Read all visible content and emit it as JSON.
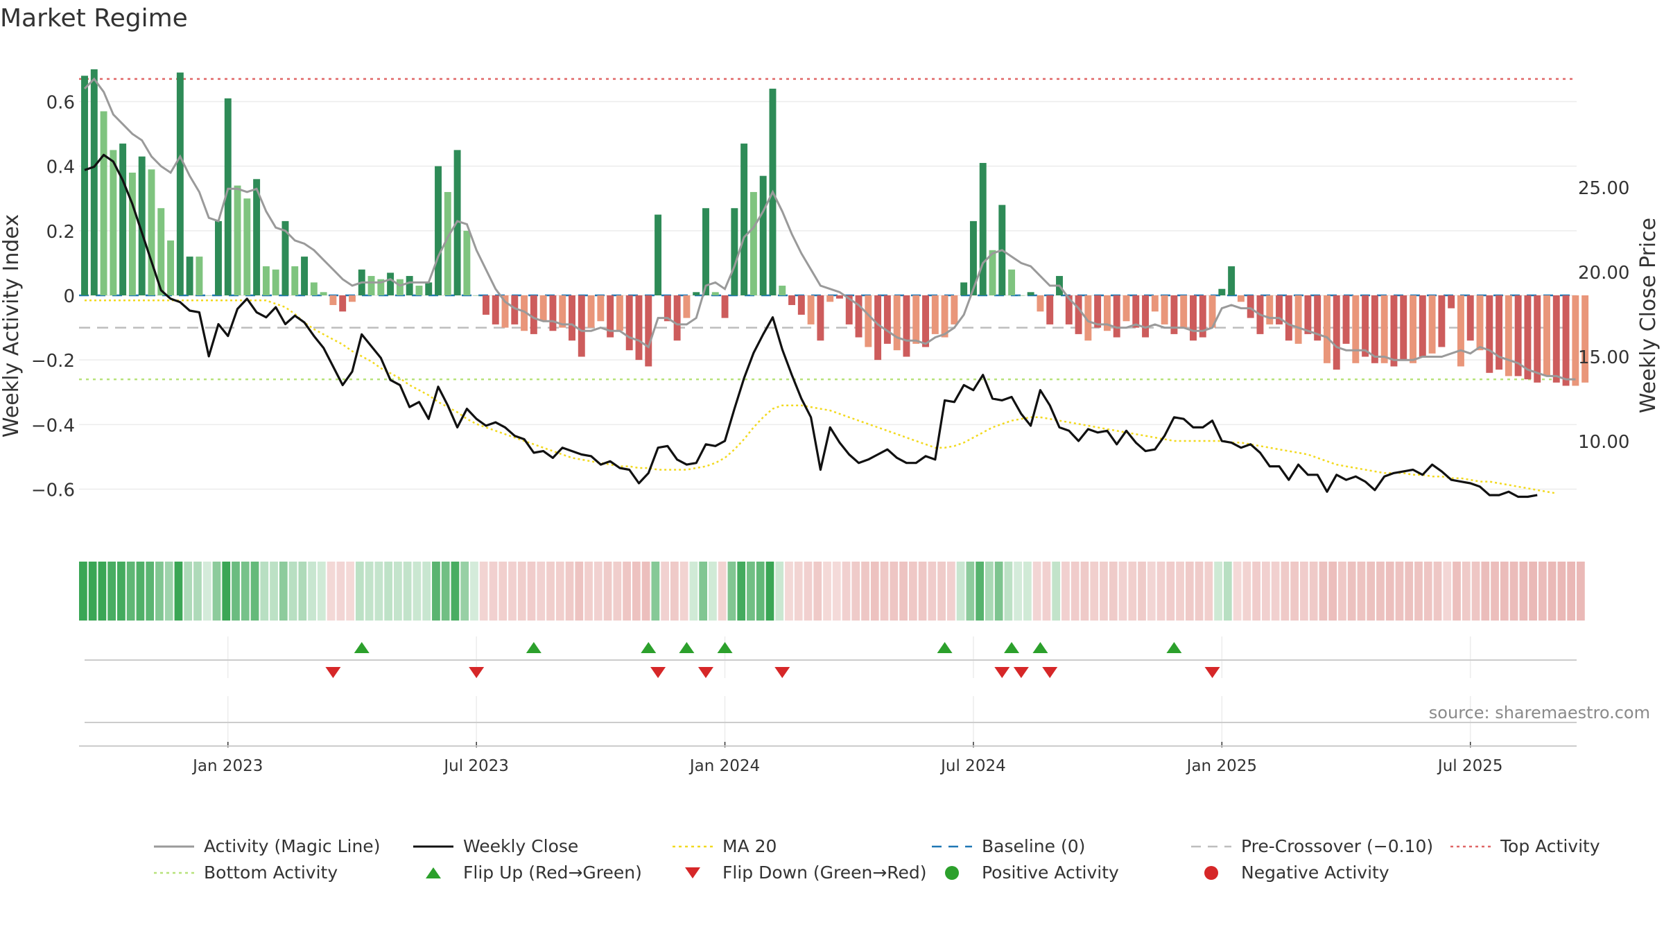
{
  "title": "Market Regime",
  "source": "source: sharemaestro.com",
  "colors": {
    "pos_strong": "#2e8b57",
    "pos_light": "#7fc47f",
    "neg_strong": "#cd5c5c",
    "neg_light": "#e9967a",
    "weekly_close": "#111111",
    "magic_line": "#9a9a9a",
    "ma20": "#f2d91f",
    "baseline": "#1f77b4",
    "pre_crossover": "#bdbdbd",
    "top_activity": "#e06666",
    "bottom_activity": "#b7e27a",
    "flip_up": "#2ca02c",
    "flip_down": "#d62728"
  },
  "chart_data": {
    "type": "bar+line",
    "title": "Market Regime",
    "ylabel_left": "Weekly Activity Index",
    "ylabel_right": "Weekly Close Price",
    "y_left_ticks": [
      {
        "v": 0.6,
        "label": "0.6"
      },
      {
        "v": 0.4,
        "label": "0.4"
      },
      {
        "v": 0.2,
        "label": "0.2"
      },
      {
        "v": 0,
        "label": "0"
      },
      {
        "v": -0.2,
        "label": "−0.2"
      },
      {
        "v": -0.4,
        "label": "−0.4"
      },
      {
        "v": -0.6,
        "label": "−0.6"
      }
    ],
    "y_right_ticks": [
      {
        "v": 25,
        "label": "25.00"
      },
      {
        "v": 20,
        "label": "20.00"
      },
      {
        "v": 15,
        "label": "15.00"
      },
      {
        "v": 10,
        "label": "10.00"
      }
    ],
    "ylim_left": [
      -0.76,
      0.76
    ],
    "ylim_right": [
      4.1,
      33.1
    ],
    "x_ticks": [
      {
        "week": 15,
        "label": "Jan 2023"
      },
      {
        "week": 41,
        "label": "Jul 2023"
      },
      {
        "week": 67,
        "label": "Jan 2024"
      },
      {
        "week": 93,
        "label": "Jul 2024"
      },
      {
        "week": 119,
        "label": "Jan 2025"
      },
      {
        "week": 145,
        "label": "Jul 2025"
      }
    ],
    "week_count": 157,
    "reference_lines": {
      "top_activity": 0.67,
      "bottom_activity": -0.26,
      "pre_crossover": -0.1,
      "baseline": 0,
      "ma20_start": 0.115
    },
    "activity": [
      0.68,
      0.7,
      0.57,
      0.45,
      0.47,
      0.38,
      0.43,
      0.39,
      0.27,
      0.17,
      0.69,
      0.12,
      0.12,
      0.0,
      0.23,
      0.61,
      0.34,
      0.3,
      0.36,
      0.09,
      0.08,
      0.23,
      0.09,
      0.12,
      0.04,
      0.01,
      -0.03,
      -0.05,
      -0.02,
      0.08,
      0.06,
      0.05,
      0.07,
      0.05,
      0.06,
      0.03,
      0.04,
      0.4,
      0.32,
      0.45,
      0.2,
      0.0,
      -0.06,
      -0.09,
      -0.1,
      -0.09,
      -0.11,
      -0.12,
      -0.08,
      -0.11,
      -0.1,
      -0.14,
      -0.19,
      -0.1,
      -0.08,
      -0.13,
      -0.11,
      -0.17,
      -0.2,
      -0.22,
      0.25,
      -0.08,
      -0.14,
      -0.07,
      0.01,
      0.27,
      0.01,
      -0.07,
      0.27,
      0.47,
      0.32,
      0.37,
      0.64,
      0.03,
      -0.03,
      -0.06,
      -0.09,
      -0.14,
      -0.02,
      -0.01,
      -0.09,
      -0.13,
      -0.16,
      -0.2,
      -0.15,
      -0.17,
      -0.19,
      -0.15,
      -0.16,
      -0.12,
      -0.13,
      -0.09,
      0.04,
      0.23,
      0.41,
      0.14,
      0.28,
      0.08,
      0.0,
      0.01,
      -0.05,
      -0.09,
      0.06,
      -0.09,
      -0.12,
      -0.14,
      -0.1,
      -0.11,
      -0.13,
      -0.08,
      -0.1,
      -0.13,
      -0.05,
      -0.09,
      -0.12,
      -0.1,
      -0.14,
      -0.13,
      -0.1,
      0.02,
      0.09,
      -0.02,
      -0.07,
      -0.12,
      -0.09,
      -0.09,
      -0.14,
      -0.15,
      -0.12,
      -0.14,
      -0.21,
      -0.23,
      -0.15,
      -0.21,
      -0.19,
      -0.21,
      -0.21,
      -0.22,
      -0.2,
      -0.21,
      -0.19,
      -0.18,
      -0.16,
      -0.04,
      -0.22,
      -0.14,
      -0.17,
      -0.24,
      -0.23,
      -0.25,
      -0.25,
      -0.26,
      -0.27,
      -0.25,
      -0.27,
      -0.28,
      -0.28,
      -0.27
    ],
    "activity_strong": [
      1,
      1,
      0,
      0,
      1,
      0,
      1,
      0,
      0,
      0,
      1,
      1,
      0,
      0,
      1,
      1,
      0,
      0,
      1,
      0,
      0,
      1,
      0,
      1,
      0,
      0,
      0,
      1,
      0,
      1,
      0,
      0,
      1,
      0,
      1,
      0,
      1,
      1,
      0,
      1,
      0,
      0,
      1,
      1,
      0,
      1,
      0,
      1,
      0,
      1,
      0,
      1,
      1,
      0,
      0,
      1,
      0,
      1,
      1,
      1,
      1,
      1,
      1,
      0,
      1,
      1,
      0,
      1,
      1,
      1,
      0,
      1,
      1,
      0,
      1,
      1,
      0,
      1,
      0,
      1,
      1,
      1,
      0,
      1,
      1,
      0,
      1,
      0,
      1,
      0,
      0,
      0,
      1,
      1,
      1,
      0,
      1,
      0,
      0,
      1,
      0,
      1,
      1,
      1,
      1,
      0,
      1,
      0,
      1,
      0,
      1,
      1,
      0,
      0,
      1,
      0,
      1,
      1,
      0,
      1,
      1,
      0,
      1,
      1,
      0,
      1,
      1,
      0,
      1,
      1,
      0,
      1,
      1,
      0,
      1,
      1,
      0,
      1,
      1,
      0,
      1,
      0,
      1,
      1,
      0,
      1,
      0,
      1,
      1,
      0,
      1,
      1,
      1,
      0,
      1,
      1,
      0
    ],
    "weekly_close": [
      26.0,
      26.2,
      26.9,
      26.5,
      25.4,
      24.0,
      22.3,
      20.6,
      18.9,
      18.4,
      18.2,
      17.7,
      17.6,
      15.0,
      16.9,
      16.2,
      17.8,
      18.4,
      17.6,
      17.3,
      17.9,
      16.9,
      17.4,
      17.0,
      16.2,
      15.5,
      14.4,
      13.3,
      14.1,
      16.3,
      15.6,
      14.9,
      13.6,
      13.3,
      12.0,
      12.3,
      11.3,
      13.2,
      12.1,
      10.8,
      11.9,
      11.3,
      10.9,
      11.1,
      10.8,
      10.3,
      10.1,
      9.3,
      9.4,
      9.0,
      9.6,
      9.4,
      9.2,
      9.1,
      8.6,
      8.8,
      8.4,
      8.3,
      7.5,
      8.1,
      9.6,
      9.7,
      8.9,
      8.6,
      8.7,
      9.8,
      9.7,
      10.0,
      11.9,
      13.7,
      15.2,
      16.3,
      17.3,
      15.4,
      13.9,
      12.5,
      11.4,
      8.3,
      10.8,
      9.9,
      9.2,
      8.7,
      8.9,
      9.2,
      9.5,
      9.0,
      8.7,
      8.7,
      9.1,
      8.9,
      12.4,
      12.3,
      13.3,
      13.0,
      13.9,
      12.5,
      12.4,
      12.6,
      11.6,
      10.9,
      13.0,
      12.1,
      10.8,
      10.6,
      10.0,
      10.7,
      10.5,
      10.6,
      9.8,
      10.6,
      9.9,
      9.4,
      9.5,
      10.3,
      11.4,
      11.3,
      10.8,
      10.8,
      11.2,
      10.0,
      9.9,
      9.6,
      9.8,
      9.3,
      8.5,
      8.5,
      7.7,
      8.6,
      8.0,
      8.0,
      7.0,
      8.0,
      7.7,
      7.9,
      7.6,
      7.1,
      7.9,
      8.1,
      8.2,
      8.3,
      8.0,
      8.6,
      8.2,
      7.7,
      7.6,
      7.5,
      7.3,
      6.8,
      6.8,
      7.0,
      6.7,
      6.7,
      6.8
    ],
    "magic_line": [
      0.64,
      0.67,
      0.63,
      0.56,
      0.53,
      0.5,
      0.48,
      0.43,
      0.4,
      0.38,
      0.43,
      0.37,
      0.32,
      0.24,
      0.23,
      0.33,
      0.33,
      0.32,
      0.33,
      0.26,
      0.21,
      0.2,
      0.17,
      0.16,
      0.14,
      0.11,
      0.08,
      0.05,
      0.03,
      0.04,
      0.04,
      0.04,
      0.05,
      0.03,
      0.04,
      0.04,
      0.04,
      0.12,
      0.18,
      0.23,
      0.22,
      0.14,
      0.08,
      0.02,
      -0.02,
      -0.04,
      -0.05,
      -0.07,
      -0.08,
      -0.08,
      -0.09,
      -0.09,
      -0.11,
      -0.11,
      -0.1,
      -0.11,
      -0.11,
      -0.13,
      -0.14,
      -0.16,
      -0.07,
      -0.07,
      -0.09,
      -0.09,
      -0.07,
      0.03,
      0.04,
      0.02,
      0.09,
      0.18,
      0.21,
      0.26,
      0.32,
      0.26,
      0.19,
      0.13,
      0.08,
      0.03,
      0.02,
      0.01,
      -0.01,
      -0.03,
      -0.06,
      -0.09,
      -0.11,
      -0.13,
      -0.14,
      -0.14,
      -0.15,
      -0.13,
      -0.12,
      -0.1,
      -0.06,
      0.02,
      0.1,
      0.13,
      0.14,
      0.12,
      0.1,
      0.09,
      0.06,
      0.03,
      0.03,
      -0.01,
      -0.04,
      -0.08,
      -0.09,
      -0.09,
      -0.1,
      -0.1,
      -0.09,
      -0.1,
      -0.09,
      -0.1,
      -0.1,
      -0.1,
      -0.11,
      -0.11,
      -0.1,
      -0.04,
      -0.03,
      -0.04,
      -0.04,
      -0.06,
      -0.07,
      -0.07,
      -0.09,
      -0.1,
      -0.11,
      -0.12,
      -0.13,
      -0.16,
      -0.17,
      -0.17,
      -0.17,
      -0.19,
      -0.19,
      -0.2,
      -0.2,
      -0.2,
      -0.19,
      -0.19,
      -0.19,
      -0.18,
      -0.17,
      -0.18,
      -0.16,
      -0.17,
      -0.19,
      -0.2,
      -0.21,
      -0.23,
      -0.24,
      -0.25,
      -0.25,
      -0.26,
      -0.26
    ],
    "ma20_price": [
      18.3,
      18.3,
      18.3,
      18.3,
      18.3,
      18.3,
      18.3,
      18.3,
      18.3,
      18.3,
      18.3,
      18.3,
      18.3,
      18.3,
      18.3,
      18.3,
      18.3,
      18.3,
      18.3,
      18.3,
      18.1,
      17.9,
      17.5,
      17.0,
      16.6,
      16.3,
      16.0,
      15.7,
      15.3,
      15.0,
      14.7,
      14.3,
      14.0,
      13.7,
      13.3,
      13.0,
      12.7,
      12.3,
      12.0,
      11.7,
      11.3,
      11.0,
      10.8,
      10.6,
      10.4,
      10.2,
      10.0,
      9.8,
      9.6,
      9.4,
      9.2,
      9.0,
      8.9,
      8.8,
      8.7,
      8.6,
      8.5,
      8.5,
      8.4,
      8.4,
      8.3,
      8.3,
      8.3,
      8.3,
      8.4,
      8.5,
      8.7,
      9.0,
      9.5,
      10.1,
      10.8,
      11.4,
      11.9,
      12.1,
      12.1,
      12.1,
      12.0,
      11.9,
      11.8,
      11.6,
      11.4,
      11.2,
      11.0,
      10.8,
      10.6,
      10.4,
      10.2,
      10.0,
      9.8,
      9.6,
      9.6,
      9.7,
      9.9,
      10.2,
      10.5,
      10.8,
      11.0,
      11.2,
      11.3,
      11.4,
      11.4,
      11.3,
      11.2,
      11.1,
      11.0,
      10.9,
      10.8,
      10.7,
      10.6,
      10.5,
      10.4,
      10.3,
      10.2,
      10.1,
      10.0,
      10.0,
      10.0,
      10.0,
      10.0,
      10.0,
      9.9,
      9.9,
      9.8,
      9.7,
      9.6,
      9.5,
      9.4,
      9.3,
      9.2,
      9.0,
      8.8,
      8.6,
      8.5,
      8.4,
      8.3,
      8.2,
      8.1,
      8.1,
      8.1,
      8.0,
      8.0,
      7.9,
      7.9,
      7.8,
      7.8,
      7.7,
      7.6,
      7.6,
      7.5,
      7.4,
      7.3,
      7.2,
      7.1,
      7.0,
      6.9
    ],
    "flip_up_weeks": [
      29,
      47,
      59,
      63,
      67,
      90,
      97,
      100,
      114
    ],
    "flip_down_weeks": [
      26,
      41,
      60,
      65,
      73,
      96,
      98,
      101,
      118
    ],
    "ribbon_weeks_count": 157
  },
  "legend": [
    {
      "key": "magic_line",
      "label": "Activity (Magic Line)",
      "style": "solid-gray"
    },
    {
      "key": "weekly_close",
      "label": "Weekly Close",
      "style": "solid-black"
    },
    {
      "key": "ma20",
      "label": "MA 20",
      "style": "dotted-yellow"
    },
    {
      "key": "baseline",
      "label": "Baseline (0)",
      "style": "dashed-blue"
    },
    {
      "key": "pre_crossover",
      "label": "Pre-Crossover (−0.10)",
      "style": "dashed-gray"
    },
    {
      "key": "top_activity",
      "label": "Top Activity",
      "style": "dotted-red"
    },
    {
      "key": "bottom_activity",
      "label": "Bottom Activity",
      "style": "dotted-green"
    },
    {
      "key": "flip_up",
      "label": "Flip Up (Red→Green)",
      "style": "tri-up"
    },
    {
      "key": "flip_down",
      "label": "Flip Down (Green→Red)",
      "style": "tri-down"
    },
    {
      "key": "positive",
      "label": "Positive Activity",
      "style": "dot-green"
    },
    {
      "key": "negative",
      "label": "Negative Activity",
      "style": "dot-red"
    }
  ]
}
